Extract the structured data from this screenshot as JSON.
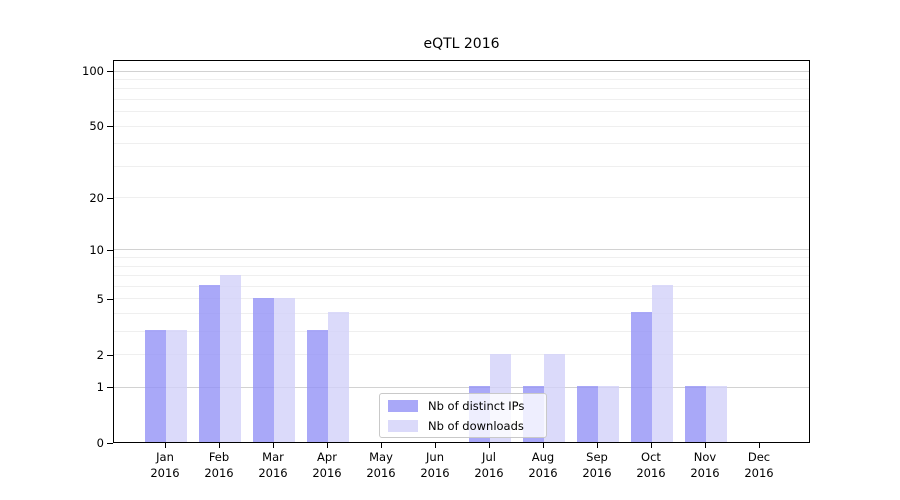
{
  "figure": {
    "title": "eQTL 2016"
  },
  "chart_data": {
    "type": "bar",
    "title": "eQTL 2016",
    "categories": [
      "Jan 2016",
      "Feb 2016",
      "Mar 2016",
      "Apr 2016",
      "May 2016",
      "Jun 2016",
      "Jul 2016",
      "Aug 2016",
      "Sep 2016",
      "Oct 2016",
      "Nov 2016",
      "Dec 2016"
    ],
    "series": [
      {
        "name": "Nb of distinct IPs",
        "color": "#a9a8f8",
        "fill": "rgba(148,146,246,0.8)",
        "values": [
          3,
          6,
          5,
          3,
          0,
          0,
          1,
          1,
          1,
          4,
          1,
          0
        ]
      },
      {
        "name": "Nb of downloads",
        "color": "#dbdafa",
        "fill": "rgba(210,209,249,0.8)",
        "values": [
          3,
          7,
          5,
          4,
          0,
          0,
          2,
          2,
          1,
          6,
          1,
          0
        ]
      }
    ],
    "xlabel": "",
    "ylabel": "",
    "y_axis": {
      "scale": "log10(1+y)",
      "tick_values": [
        0,
        1,
        2,
        5,
        10,
        20,
        50,
        100
      ],
      "major_gridlines": [
        1,
        10,
        100
      ],
      "minor_gridlines": [
        2,
        3,
        4,
        5,
        6,
        7,
        8,
        9,
        20,
        30,
        40,
        50,
        60,
        70,
        80,
        90
      ],
      "ylim": [
        0,
        115
      ]
    },
    "legend": {
      "position": "lower center",
      "items": [
        "Nb of distinct IPs",
        "Nb of downloads"
      ]
    },
    "grid": true
  },
  "colors": {
    "background": "#ffffff",
    "bar_distinct_ips": "#a9a8f8",
    "bar_downloads": "#dbdafa",
    "grid_major": "#d2d2d2",
    "grid_minor": "#efefef",
    "axis_frame": "#000000",
    "legend_border": "#c9c9c9",
    "text": "#000000"
  }
}
